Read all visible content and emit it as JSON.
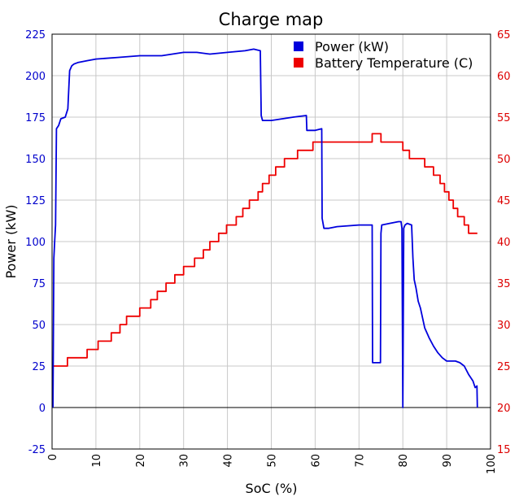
{
  "chart_data": {
    "type": "line",
    "title": "Charge map",
    "xlabel": "SoC (%)",
    "ylabel": "Power (kW)",
    "xlim": [
      0,
      100
    ],
    "ylim_left": [
      -25,
      225
    ],
    "ylim_right": [
      15,
      65
    ],
    "x_ticks": [
      "0",
      "10",
      "20",
      "30",
      "40",
      "50",
      "60",
      "70",
      "80",
      "90",
      "100"
    ],
    "y_ticks_left": [
      "-25",
      "0",
      "25",
      "50",
      "75",
      "100",
      "125",
      "150",
      "175",
      "200",
      "225"
    ],
    "y_ticks_right": [
      "15",
      "20",
      "25",
      "30",
      "35",
      "40",
      "45",
      "50",
      "55",
      "60",
      "65"
    ],
    "grid": true,
    "legend_position": "top-right",
    "colors": {
      "power": "#0000dd",
      "temperature": "#ee0000",
      "left_axis": "#0000cc",
      "right_axis": "#dd0000"
    },
    "series": [
      {
        "name": "Power (kW)",
        "axis": "left",
        "x": [
          0.2,
          0.4,
          0.6,
          0.8,
          1.0,
          1.5,
          2.0,
          3.0,
          3.6,
          4.0,
          4.5,
          5.0,
          6.0,
          8.0,
          10.0,
          15.0,
          20.0,
          25.0,
          30.0,
          33.0,
          36.0,
          40.0,
          44.0,
          46.0,
          47.5,
          47.7,
          48.0,
          50.0,
          55.0,
          58.0,
          58.1,
          60.0,
          61.5,
          61.6,
          62.0,
          63.0,
          65.0,
          70.0,
          73.0,
          73.1,
          74.0,
          74.9,
          75.0,
          75.2,
          77.0,
          79.0,
          79.6,
          79.8,
          80.0,
          80.2,
          80.5,
          81.0,
          82.0,
          82.3,
          82.6,
          83.0,
          83.5,
          84.0,
          85.0,
          86.0,
          87.0,
          88.0,
          89.0,
          90.0,
          92.0,
          93.0,
          94.0,
          95.0,
          96.0,
          96.5,
          96.9,
          97.0
        ],
        "y": [
          0,
          90,
          100,
          110,
          168,
          170,
          174,
          175,
          180,
          203,
          206,
          207,
          208,
          209,
          210,
          211,
          212,
          212,
          214,
          214,
          213,
          214,
          215,
          216,
          215,
          176,
          173,
          173,
          175,
          176,
          167,
          167,
          168,
          114,
          108,
          108,
          109,
          110,
          110,
          27,
          27,
          27,
          105,
          110,
          111,
          112,
          112,
          108,
          0,
          108,
          110,
          111,
          110,
          90,
          77,
          72,
          64,
          60,
          48,
          42,
          37,
          33,
          30,
          28,
          28,
          27,
          25,
          20,
          16,
          12,
          13,
          0
        ]
      },
      {
        "name": "Battery Temperature (C)",
        "axis": "right",
        "x": [
          0.3,
          3.5,
          3.5,
          8.0,
          8.0,
          10.5,
          10.5,
          13.5,
          13.5,
          15.5,
          15.5,
          17.0,
          17.0,
          20.0,
          20.0,
          22.5,
          22.5,
          24.0,
          24.0,
          26.0,
          26.0,
          28.0,
          28.0,
          30.0,
          30.0,
          32.5,
          32.5,
          34.5,
          34.5,
          36.0,
          36.0,
          38.0,
          38.0,
          39.8,
          39.8,
          42.0,
          42.0,
          43.5,
          43.5,
          45.0,
          45.0,
          47.0,
          47.0,
          48.0,
          48.0,
          49.5,
          49.5,
          51.0,
          51.0,
          53.0,
          53.0,
          56.0,
          56.0,
          59.5,
          59.5,
          61.5,
          61.5,
          64.5,
          64.5,
          73.0,
          73.0,
          75.0,
          75.0,
          80.0,
          80.0,
          81.5,
          81.5,
          85.0,
          85.0,
          87.0,
          87.0,
          88.5,
          88.5,
          89.5,
          89.5,
          90.5,
          90.5,
          91.5,
          91.5,
          92.5,
          92.5,
          94.0,
          94.0,
          95.0,
          95.0,
          97.0
        ],
        "y": [
          25,
          25,
          26,
          26,
          27,
          27,
          28,
          28,
          29,
          29,
          30,
          30,
          31,
          31,
          32,
          32,
          33,
          33,
          34,
          34,
          35,
          35,
          36,
          36,
          37,
          37,
          38,
          38,
          39,
          39,
          40,
          40,
          41,
          41,
          42,
          42,
          43,
          43,
          44,
          44,
          45,
          45,
          46,
          46,
          47,
          47,
          48,
          48,
          49,
          49,
          50,
          50,
          51,
          51,
          52,
          52,
          52,
          52,
          52,
          52,
          53,
          53,
          52,
          52,
          51,
          51,
          50,
          50,
          49,
          49,
          48,
          48,
          47,
          47,
          46,
          46,
          45,
          45,
          44,
          44,
          43,
          43,
          42,
          42,
          41,
          41
        ]
      }
    ]
  }
}
